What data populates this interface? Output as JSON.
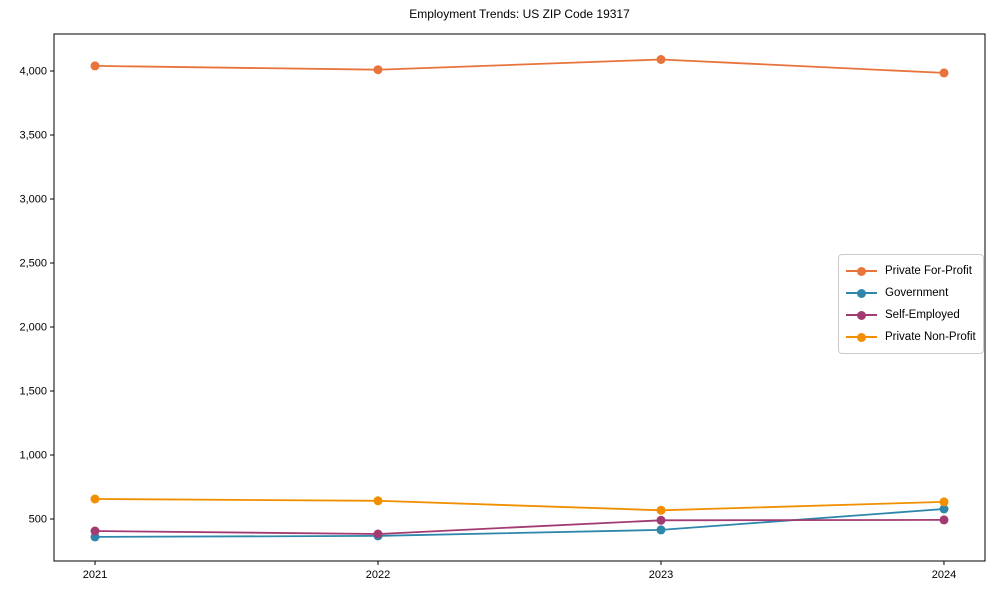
{
  "chart_data": {
    "type": "line",
    "title": "Employment Trends: US ZIP Code 19317",
    "xlabel": "",
    "ylabel": "",
    "categories": [
      2021,
      2022,
      2023,
      2024
    ],
    "series": [
      {
        "name": "Private For-Profit",
        "color": "#E8743B",
        "values": [
          4040,
          4010,
          4090,
          3985
        ]
      },
      {
        "name": "Government",
        "color": "#2E86AB",
        "values": [
          360,
          368,
          415,
          578
        ]
      },
      {
        "name": "Self-Employed",
        "color": "#A23B72",
        "values": [
          406,
          383,
          490,
          493
        ]
      },
      {
        "name": "Private Non-Profit",
        "color": "#F18F01",
        "values": [
          656,
          642,
          568,
          634
        ]
      }
    ],
    "yticks": [
      500,
      1000,
      1500,
      2000,
      2500,
      3000,
      3500,
      4000
    ],
    "ytick_labels": [
      "500",
      "1,000",
      "1,500",
      "2,000",
      "2,500",
      "3,000",
      "3,500",
      "4,000"
    ],
    "xtick_labels": [
      "2021",
      "2022",
      "2023",
      "2024"
    ],
    "xlim": [
      2020.855,
      2024.145
    ],
    "ylim": [
      172,
      4289
    ],
    "grid": false,
    "legend_position": "center-right",
    "axis_color": "#000000",
    "background": "#ffffff"
  }
}
